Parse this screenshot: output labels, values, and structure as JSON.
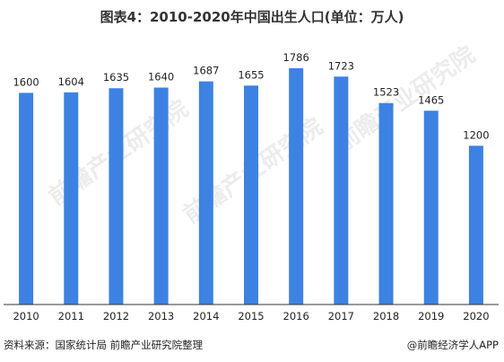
{
  "title": "图表4：2010-2020年中国出生人口(单位：万人)",
  "footer": {
    "source": "资料来源：国家统计局 前瞻产业研究院整理",
    "brand": "@前瞻经济学人APP"
  },
  "watermark": {
    "text": "前瞻产业研究院"
  },
  "colors": {
    "bar": "#3d82e3",
    "axis": "#333333",
    "label": "#222222"
  },
  "chart_data": {
    "type": "bar",
    "title": "图表4：2010-2020年中国出生人口(单位：万人)",
    "xlabel": "",
    "ylabel": "",
    "categories": [
      "2010",
      "2011",
      "2012",
      "2013",
      "2014",
      "2015",
      "2016",
      "2017",
      "2018",
      "2019",
      "2020"
    ],
    "values": [
      1600,
      1604,
      1635,
      1640,
      1687,
      1655,
      1786,
      1723,
      1523,
      1465,
      1200
    ],
    "ylim": [
      0,
      1900
    ],
    "grid": false,
    "data_labels": true
  }
}
